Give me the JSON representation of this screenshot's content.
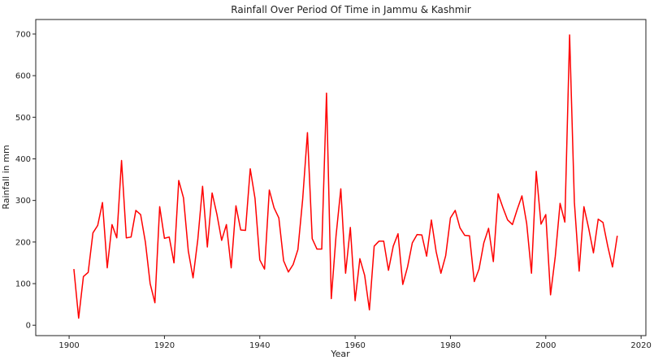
{
  "chart_data": {
    "type": "line",
    "title": "Rainfall Over Period Of Time in Jammu & Kashmir",
    "xlabel": "Year",
    "ylabel": "Rainfall in mm",
    "xlim": [
      1893,
      2021
    ],
    "ylim": [
      -25,
      735
    ],
    "xticks": [
      1900,
      1920,
      1940,
      1960,
      1980,
      2000,
      2020
    ],
    "yticks": [
      0,
      100,
      200,
      300,
      400,
      500,
      600,
      700
    ],
    "grid": false,
    "line_color": "#ff0000",
    "series": [
      {
        "x": [
          1901,
          1902,
          1903,
          1904,
          1905,
          1906,
          1907,
          1908,
          1909,
          1910,
          1911,
          1912,
          1913,
          1914,
          1915,
          1916,
          1917,
          1918,
          1919,
          1920,
          1921,
          1922,
          1923,
          1924,
          1925,
          1926,
          1927,
          1928,
          1929,
          1930,
          1931,
          1932,
          1933,
          1934,
          1935,
          1936,
          1937,
          1938,
          1939,
          1940,
          1941,
          1942,
          1943,
          1944,
          1945,
          1946,
          1947,
          1948,
          1949,
          1950,
          1951,
          1952,
          1953,
          1954,
          1955,
          1956,
          1957,
          1958,
          1959,
          1960,
          1961,
          1962,
          1963,
          1964,
          1965,
          1966,
          1967,
          1968,
          1969,
          1970,
          1971,
          1972,
          1973,
          1974,
          1975,
          1976,
          1977,
          1978,
          1979,
          1980,
          1981,
          1982,
          1983,
          1984,
          1985,
          1986,
          1987,
          1988,
          1989,
          1990,
          1991,
          1992,
          1993,
          1994,
          1995,
          1996,
          1997,
          1998,
          1999,
          2000,
          2001,
          2002,
          2003,
          2004,
          2005,
          2006,
          2007,
          2008,
          2009,
          2010,
          2011,
          2012,
          2013,
          2014,
          2015
        ],
        "values": [
          135,
          17,
          117,
          127,
          222,
          240,
          295,
          138,
          242,
          210,
          396,
          210,
          212,
          276,
          266,
          200,
          100,
          54,
          285,
          209,
          212,
          150,
          348,
          306,
          179,
          114,
          206,
          334,
          188,
          318,
          267,
          204,
          242,
          138,
          287,
          229,
          228,
          376,
          305,
          157,
          135,
          325,
          282,
          258,
          155,
          128,
          146,
          182,
          303,
          463,
          208,
          183,
          183,
          558,
          64,
          215,
          328,
          125,
          235,
          59,
          160,
          120,
          37,
          190,
          202,
          202,
          132,
          190,
          220,
          98,
          140,
          198,
          218,
          217,
          166,
          253,
          177,
          125,
          167,
          258,
          276,
          234,
          216,
          215,
          105,
          135,
          198,
          233,
          153,
          316,
          283,
          253,
          242,
          278,
          311,
          244,
          125,
          370,
          243,
          266,
          73,
          166,
          293,
          248,
          698,
          296,
          130,
          285,
          233,
          174,
          255,
          247,
          190,
          140,
          215
        ]
      }
    ]
  }
}
